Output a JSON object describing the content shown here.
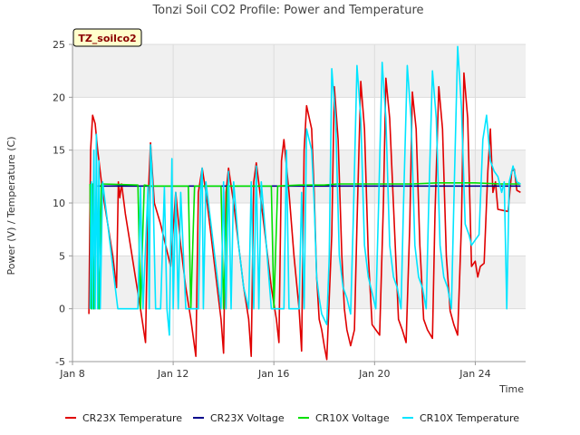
{
  "chart_data": {
    "type": "line",
    "title": "Tonzi Soil CO2 Profile: Power and Temperature",
    "xlabel": "Time",
    "ylabel": "Power (V) / Temperature (C)",
    "station_label": "TZ_soilco2",
    "xlim": [
      8,
      26
    ],
    "ylim": [
      -5,
      25
    ],
    "x_ticks": [
      {
        "value": 8,
        "label": "Jan 8"
      },
      {
        "value": 12,
        "label": "Jan 12"
      },
      {
        "value": 16,
        "label": "Jan 16"
      },
      {
        "value": 20,
        "label": "Jan 20"
      },
      {
        "value": 24,
        "label": "Jan 24"
      }
    ],
    "y_ticks": [
      -5,
      0,
      5,
      10,
      15,
      20,
      25
    ],
    "grid": true,
    "legend_position": "bottom",
    "series": [
      {
        "name": "CR23X Temperature",
        "color": "#e00000",
        "points": [
          [
            8.65,
            -0.5
          ],
          [
            8.72,
            15
          ],
          [
            8.8,
            18.3
          ],
          [
            8.9,
            17.5
          ],
          [
            9,
            15
          ],
          [
            9.2,
            11
          ],
          [
            9.4,
            8
          ],
          [
            9.6,
            5
          ],
          [
            9.75,
            2
          ],
          [
            9.82,
            12
          ],
          [
            9.88,
            10.5
          ],
          [
            9.95,
            11.8
          ],
          [
            10.1,
            9
          ],
          [
            10.3,
            6
          ],
          [
            10.5,
            3
          ],
          [
            10.7,
            0
          ],
          [
            10.9,
            -3.2
          ],
          [
            11.0,
            10
          ],
          [
            11.1,
            15.7
          ],
          [
            11.25,
            10
          ],
          [
            11.5,
            8
          ],
          [
            11.7,
            6
          ],
          [
            11.9,
            4
          ],
          [
            12.1,
            11
          ],
          [
            12.3,
            6
          ],
          [
            12.5,
            2
          ],
          [
            12.7,
            -1
          ],
          [
            12.9,
            -4.5
          ],
          [
            13.0,
            11
          ],
          [
            13.15,
            13.3
          ],
          [
            13.3,
            11
          ],
          [
            13.5,
            7
          ],
          [
            13.7,
            3
          ],
          [
            13.9,
            -1
          ],
          [
            14.0,
            -4.2
          ],
          [
            14.1,
            11
          ],
          [
            14.2,
            13.3
          ],
          [
            14.4,
            10
          ],
          [
            14.6,
            6
          ],
          [
            14.8,
            2
          ],
          [
            15.0,
            -1
          ],
          [
            15.1,
            -4.5
          ],
          [
            15.2,
            12
          ],
          [
            15.3,
            13.8
          ],
          [
            15.5,
            10
          ],
          [
            15.7,
            6
          ],
          [
            15.9,
            2
          ],
          [
            16.1,
            -1
          ],
          [
            16.2,
            -3.2
          ],
          [
            16.3,
            14
          ],
          [
            16.4,
            16
          ],
          [
            16.6,
            11
          ],
          [
            16.8,
            5
          ],
          [
            17.0,
            0
          ],
          [
            17.1,
            -4
          ],
          [
            17.2,
            15
          ],
          [
            17.3,
            19.2
          ],
          [
            17.5,
            17
          ],
          [
            17.6,
            11
          ],
          [
            17.7,
            3
          ],
          [
            17.8,
            -1
          ],
          [
            17.9,
            -2
          ],
          [
            18.0,
            -3.5
          ],
          [
            18.1,
            -4.8
          ],
          [
            18.3,
            7
          ],
          [
            18.4,
            21
          ],
          [
            18.55,
            16
          ],
          [
            18.7,
            5
          ],
          [
            18.8,
            0
          ],
          [
            18.9,
            -2
          ],
          [
            19.05,
            -3.5
          ],
          [
            19.2,
            -2
          ],
          [
            19.3,
            8
          ],
          [
            19.45,
            21.5
          ],
          [
            19.6,
            17
          ],
          [
            19.75,
            5
          ],
          [
            19.9,
            -1.5
          ],
          [
            20.05,
            -2
          ],
          [
            20.2,
            -2.5
          ],
          [
            20.35,
            10
          ],
          [
            20.45,
            21.8
          ],
          [
            20.6,
            18
          ],
          [
            20.8,
            7
          ],
          [
            20.95,
            -1
          ],
          [
            21.1,
            -2
          ],
          [
            21.25,
            -3.2
          ],
          [
            21.4,
            8
          ],
          [
            21.5,
            20.5
          ],
          [
            21.65,
            17
          ],
          [
            21.8,
            6
          ],
          [
            21.95,
            -1
          ],
          [
            22.1,
            -2
          ],
          [
            22.3,
            -2.8
          ],
          [
            22.4,
            9
          ],
          [
            22.55,
            21
          ],
          [
            22.7,
            17
          ],
          [
            22.85,
            5
          ],
          [
            23.0,
            -0.2
          ],
          [
            23.15,
            -1.5
          ],
          [
            23.3,
            -2.5
          ],
          [
            23.45,
            8
          ],
          [
            23.55,
            22.3
          ],
          [
            23.7,
            18
          ],
          [
            23.85,
            4
          ],
          [
            24.0,
            4.5
          ],
          [
            24.1,
            3
          ],
          [
            24.2,
            4
          ],
          [
            24.35,
            4.3
          ],
          [
            24.5,
            13
          ],
          [
            24.6,
            17
          ],
          [
            24.7,
            11
          ],
          [
            24.8,
            12
          ],
          [
            24.9,
            9.4
          ],
          [
            25.1,
            9.3
          ],
          [
            25.3,
            9.2
          ],
          [
            25.45,
            13
          ],
          [
            25.55,
            13.2
          ],
          [
            25.65,
            11.2
          ],
          [
            25.8,
            11
          ]
        ]
      },
      {
        "name": "CR23X Voltage",
        "color": "#00008b",
        "points": [
          [
            9.0,
            11.6
          ],
          [
            25.8,
            11.6
          ]
        ]
      },
      {
        "name": "CR10X Voltage",
        "color": "#00e000",
        "points": [
          [
            8.7,
            11.8
          ],
          [
            8.75,
            0
          ],
          [
            8.8,
            11.8
          ],
          [
            8.85,
            0
          ],
          [
            8.95,
            11.8
          ],
          [
            9.05,
            0
          ],
          [
            9.15,
            11.8
          ],
          [
            10.6,
            11.7
          ],
          [
            10.7,
            0
          ],
          [
            10.85,
            11.7
          ],
          [
            11.1,
            11.6
          ],
          [
            12.6,
            11.6
          ],
          [
            12.7,
            0
          ],
          [
            12.85,
            11.6
          ],
          [
            13.9,
            11.6
          ],
          [
            14.0,
            0
          ],
          [
            14.15,
            11.6
          ],
          [
            15.9,
            11.6
          ],
          [
            16.0,
            0
          ],
          [
            16.15,
            11.6
          ],
          [
            17.0,
            11.7
          ],
          [
            18.0,
            11.7
          ],
          [
            18.5,
            11.8
          ],
          [
            20.0,
            11.8
          ],
          [
            21.5,
            11.8
          ],
          [
            22.5,
            11.9
          ],
          [
            23.5,
            11.9
          ],
          [
            24.0,
            11.9
          ],
          [
            25.0,
            11.8
          ],
          [
            25.8,
            11.8
          ]
        ]
      },
      {
        "name": "CR10X Temperature",
        "color": "#00e5ff",
        "points": [
          [
            8.7,
            0
          ],
          [
            8.75,
            12
          ],
          [
            8.8,
            0
          ],
          [
            8.85,
            15
          ],
          [
            8.9,
            0
          ],
          [
            8.95,
            16.5
          ],
          [
            9.0,
            0
          ],
          [
            9.05,
            14
          ],
          [
            9.1,
            0
          ],
          [
            9.2,
            12
          ],
          [
            9.4,
            8
          ],
          [
            9.6,
            4
          ],
          [
            9.8,
            0
          ],
          [
            10.6,
            0
          ],
          [
            10.7,
            11.5
          ],
          [
            10.8,
            0
          ],
          [
            11.0,
            11.5
          ],
          [
            11.05,
            0
          ],
          [
            11.1,
            15.5
          ],
          [
            11.2,
            11
          ],
          [
            11.3,
            0
          ],
          [
            11.5,
            0
          ],
          [
            11.65,
            11.5
          ],
          [
            11.75,
            0
          ],
          [
            11.85,
            -2.5
          ],
          [
            11.95,
            14.2
          ],
          [
            12.0,
            0
          ],
          [
            12.1,
            11
          ],
          [
            12.2,
            0
          ],
          [
            12.3,
            11
          ],
          [
            12.5,
            0
          ],
          [
            12.7,
            0
          ],
          [
            13.0,
            0
          ],
          [
            13.1,
            12
          ],
          [
            13.15,
            13.3
          ],
          [
            13.2,
            0
          ],
          [
            13.3,
            12
          ],
          [
            13.5,
            8
          ],
          [
            13.7,
            4
          ],
          [
            13.9,
            0
          ],
          [
            14.0,
            12
          ],
          [
            14.1,
            0
          ],
          [
            14.2,
            13
          ],
          [
            14.3,
            0
          ],
          [
            14.4,
            12
          ],
          [
            14.6,
            6
          ],
          [
            14.8,
            2
          ],
          [
            15.0,
            0
          ],
          [
            15.1,
            12
          ],
          [
            15.2,
            0
          ],
          [
            15.3,
            13.5
          ],
          [
            15.4,
            0
          ],
          [
            15.5,
            12
          ],
          [
            15.7,
            6
          ],
          [
            15.9,
            0
          ],
          [
            16.4,
            0
          ],
          [
            16.5,
            15
          ],
          [
            16.6,
            0
          ],
          [
            16.8,
            0
          ],
          [
            17.0,
            0
          ],
          [
            17.1,
            11
          ],
          [
            17.2,
            0
          ],
          [
            17.3,
            17
          ],
          [
            17.5,
            15
          ],
          [
            17.6,
            10
          ],
          [
            17.7,
            3
          ],
          [
            17.8,
            1
          ],
          [
            17.9,
            -0.5
          ],
          [
            18.0,
            -1
          ],
          [
            18.1,
            -1.5
          ],
          [
            18.2,
            5
          ],
          [
            18.3,
            22.7
          ],
          [
            18.45,
            18
          ],
          [
            18.6,
            5
          ],
          [
            18.75,
            2
          ],
          [
            18.9,
            1
          ],
          [
            19.05,
            -0.5
          ],
          [
            19.15,
            8
          ],
          [
            19.3,
            23
          ],
          [
            19.45,
            18
          ],
          [
            19.6,
            6
          ],
          [
            19.75,
            3
          ],
          [
            19.9,
            1.5
          ],
          [
            20.05,
            0
          ],
          [
            20.15,
            9
          ],
          [
            20.3,
            23.3
          ],
          [
            20.45,
            18
          ],
          [
            20.6,
            6
          ],
          [
            20.75,
            3
          ],
          [
            20.9,
            2
          ],
          [
            21.05,
            0
          ],
          [
            21.15,
            10
          ],
          [
            21.3,
            23
          ],
          [
            21.45,
            18
          ],
          [
            21.6,
            6
          ],
          [
            21.75,
            3
          ],
          [
            21.9,
            2
          ],
          [
            22.05,
            0
          ],
          [
            22.15,
            10
          ],
          [
            22.3,
            22.5
          ],
          [
            22.45,
            18
          ],
          [
            22.6,
            6
          ],
          [
            22.75,
            3
          ],
          [
            22.9,
            2
          ],
          [
            23.05,
            0
          ],
          [
            23.15,
            10
          ],
          [
            23.3,
            24.8
          ],
          [
            23.45,
            19
          ],
          [
            23.6,
            8
          ],
          [
            23.75,
            7
          ],
          [
            23.85,
            6
          ],
          [
            24.0,
            6.5
          ],
          [
            24.15,
            7
          ],
          [
            24.3,
            16
          ],
          [
            24.45,
            18.3
          ],
          [
            24.6,
            14
          ],
          [
            24.75,
            13
          ],
          [
            24.9,
            12.5
          ],
          [
            25.05,
            11
          ],
          [
            25.15,
            12
          ],
          [
            25.25,
            0
          ],
          [
            25.35,
            12
          ],
          [
            25.5,
            13.5
          ],
          [
            25.65,
            12
          ],
          [
            25.8,
            11.8
          ]
        ]
      }
    ]
  }
}
